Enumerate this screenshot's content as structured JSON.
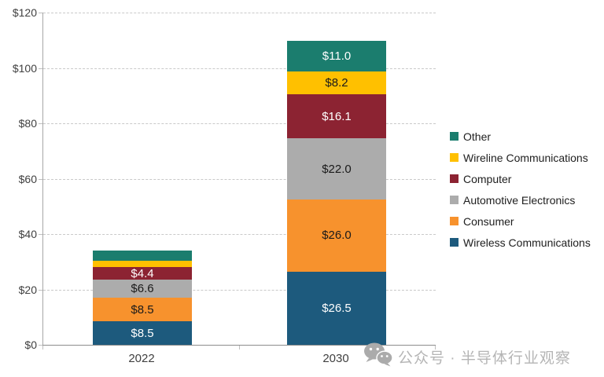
{
  "colors": {
    "background": "#FFFFFF",
    "axis_line": "#A6A6A6",
    "gridline": "#C9C9C9",
    "tick_label": "#404040",
    "watermark": "#B5B5B5"
  },
  "watermark": {
    "icon": "wechat-icon",
    "text": "公众号 · 半导体行业观察"
  },
  "chart_data": {
    "type": "bar",
    "stacked": true,
    "title": "",
    "xlabel": "",
    "ylabel": "",
    "categories": [
      "2022",
      "2030"
    ],
    "series": [
      {
        "name": "Wireless Communications",
        "color": "#1D5A7D",
        "label_text_color": "#FFFFFF",
        "values": [
          8.5,
          26.5
        ],
        "data_labels": [
          "$8.5",
          "$26.5"
        ]
      },
      {
        "name": "Consumer",
        "color": "#F7922D",
        "label_text_color": "#1A1A1A",
        "values": [
          8.5,
          26.0
        ],
        "data_labels": [
          "$8.5",
          "$26.0"
        ]
      },
      {
        "name": "Automotive Electronics",
        "color": "#ACACAC",
        "label_text_color": "#1A1A1A",
        "values": [
          6.6,
          22.0
        ],
        "data_labels": [
          "$6.6",
          "$22.0"
        ]
      },
      {
        "name": "Computer",
        "color": "#8C2332",
        "label_text_color": "#FFFFFF",
        "values": [
          4.4,
          16.1
        ],
        "data_labels": [
          "$4.4",
          "$16.1"
        ]
      },
      {
        "name": "Wireline Communications",
        "color": "#FFC000",
        "label_text_color": "#1A1A1A",
        "values": [
          2.4,
          8.2
        ],
        "data_labels": [
          "",
          "$8.2"
        ]
      },
      {
        "name": "Other",
        "color": "#1B7D6E",
        "label_text_color": "#FFFFFF",
        "values": [
          3.6,
          11.0
        ],
        "data_labels": [
          "",
          "$11.0"
        ]
      }
    ],
    "stack_order_bottom_to_top": [
      "Wireless Communications",
      "Consumer",
      "Automotive Electronics",
      "Computer",
      "Wireline Communications",
      "Other"
    ],
    "legend": {
      "position": "right",
      "items_top_to_bottom": [
        "Other",
        "Wireline Communications",
        "Computer",
        "Automotive Electronics",
        "Consumer",
        "Wireless Communications"
      ]
    },
    "y_axis": {
      "min": 0,
      "max": 120,
      "step": 20,
      "tick_labels": [
        "$0",
        "$20",
        "$40",
        "$60",
        "$80",
        "$100",
        "$120"
      ],
      "grid": "dashed",
      "unit": "US$ (billions implied)"
    },
    "x_axis": {
      "tick_labels": [
        "2022",
        "2030"
      ]
    },
    "notes": "2022 segments for Wireline Communications and Other carry no data labels; values 2.4 and 3.6 estimated from segment heights"
  }
}
